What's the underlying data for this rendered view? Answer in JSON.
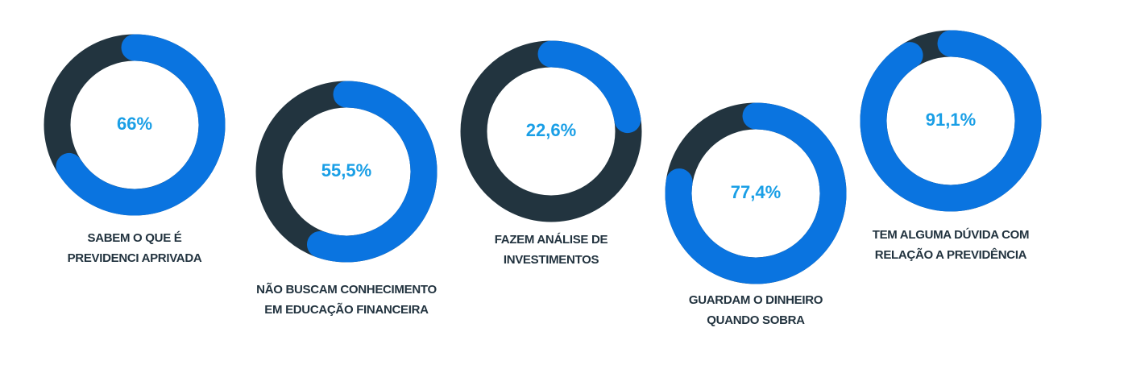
{
  "chart_data": [
    {
      "type": "donut",
      "title": "SABEM O QUE É\nPREVIDENCI APRIVADA",
      "values": [
        66
      ],
      "value_labels": [
        "66%"
      ],
      "color": "#0a74e0",
      "track_color": "#22343f",
      "label_color": "#1a9fe6"
    },
    {
      "type": "donut",
      "title": "NÃO BUSCAM CONHECIMENTO\nEM EDUCAÇÃO FINANCEIRA",
      "values": [
        55.5
      ],
      "value_labels": [
        "55,5%"
      ],
      "color": "#0a74e0",
      "track_color": "#22343f",
      "label_color": "#1a9fe6"
    },
    {
      "type": "donut",
      "title": "FAZEM ANÁLISE DE\nINVESTIMENTOS",
      "values": [
        22.6
      ],
      "value_labels": [
        "22,6%"
      ],
      "color": "#0a74e0",
      "track_color": "#22343f",
      "label_color": "#1a9fe6"
    },
    {
      "type": "donut",
      "title": "GUARDAM O  DINHEIRO\nQUANDO SOBRA",
      "values": [
        77.4
      ],
      "value_labels": [
        "77,4%"
      ],
      "color": "#0a74e0",
      "track_color": "#22343f",
      "label_color": "#1a9fe6"
    },
    {
      "type": "donut",
      "title": "TEM ALGUMA DÚVIDA COM\nRELAÇÃO A PREVIDÊNCIA",
      "values": [
        91.1
      ],
      "value_labels": [
        "91,1%"
      ],
      "color": "#0a74e0",
      "track_color": "#22343f",
      "label_color": "#1a9fe6"
    }
  ]
}
